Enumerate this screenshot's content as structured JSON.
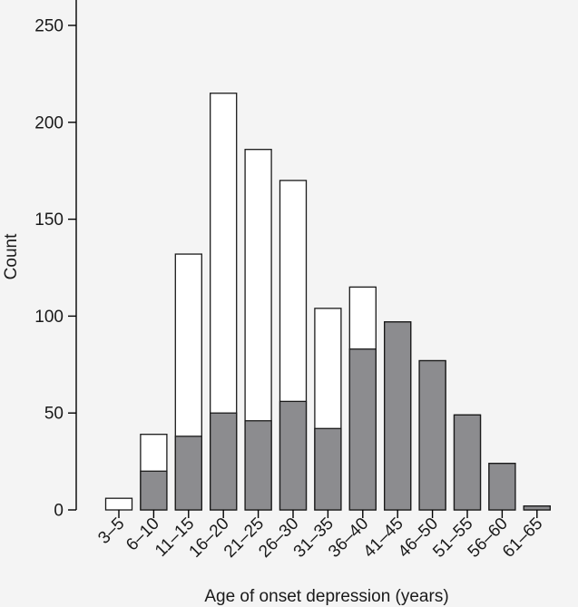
{
  "chart_data": {
    "type": "bar",
    "xlabel": "Age of onset depression (years)",
    "ylabel": "Count",
    "ylim": [
      0,
      250
    ],
    "yticks": [
      0,
      50,
      100,
      150,
      200,
      250
    ],
    "categories": [
      "3–5",
      "6–10",
      "11–15",
      "16–20",
      "21–25",
      "26–30",
      "31–35",
      "36–40",
      "41–45",
      "46–50",
      "51–55",
      "56–60",
      "61–65"
    ],
    "series": [
      {
        "values": [
          6,
          39,
          132,
          215,
          186,
          170,
          104,
          115,
          97,
          77,
          49,
          24,
          2
        ],
        "color": "#ffffff"
      },
      {
        "values": [
          0,
          20,
          38,
          50,
          46,
          56,
          42,
          83,
          97,
          77,
          49,
          24,
          2
        ],
        "color": "#8c8c8f"
      }
    ]
  }
}
